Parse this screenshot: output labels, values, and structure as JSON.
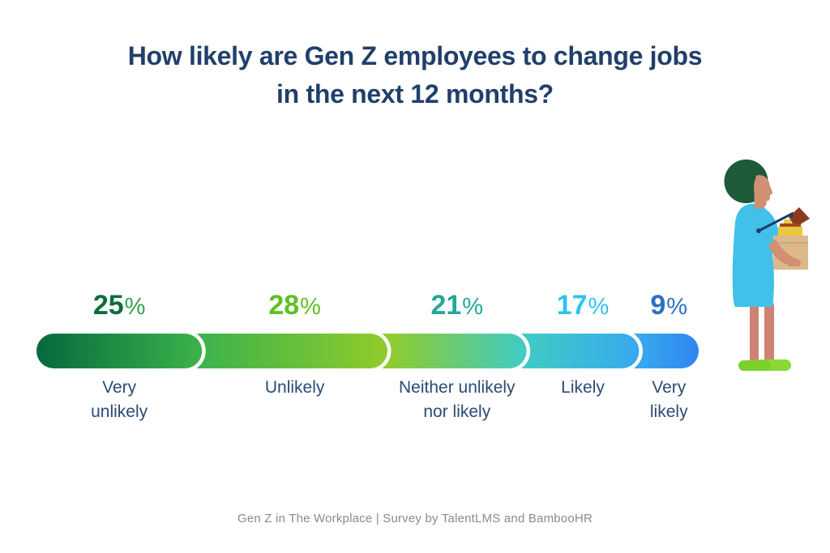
{
  "title": {
    "line1": "How likely are Gen Z employees to change jobs",
    "line2": "in the next 12 months?",
    "color": "#213f6b"
  },
  "chart_data": {
    "type": "bar",
    "variant": "horizontal-segmented-pill",
    "title": "How likely are Gen Z employees to change jobs in the next 12 months?",
    "unit": "%",
    "categories": [
      "Very unlikely",
      "Unlikely",
      "Neither unlikely nor likely",
      "Likely",
      "Very likely"
    ],
    "values": [
      25,
      28,
      21,
      17,
      9
    ],
    "segments": [
      {
        "value": 25,
        "label_lines": [
          "Very",
          "unlikely"
        ],
        "value_color": "#0c6e3b",
        "symbol_color": "#33a24f"
      },
      {
        "value": 28,
        "label_lines": [
          "Unlikely"
        ],
        "value_color": "#5fbf24",
        "symbol_color": "#5fbf24"
      },
      {
        "value": 21,
        "label_lines": [
          "Neither unlikely",
          "nor likely"
        ],
        "value_color": "#21a996",
        "symbol_color": "#21a996"
      },
      {
        "value": 17,
        "label_lines": [
          "Likely"
        ],
        "value_color": "#2fc3f0",
        "symbol_color": "#2fc3f0"
      },
      {
        "value": 9,
        "label_lines": [
          "Very",
          "likely"
        ],
        "value_color": "#2b70c4",
        "symbol_color": "#2b70c4"
      }
    ],
    "bar_gradient_stops": [
      "#06693d",
      "#3db34b",
      "#90cb2b",
      "#3fcbc5",
      "#38a8ef",
      "#2e86f0"
    ],
    "separator_color": "#ffffff",
    "category_label_color": "#2b4a74",
    "grid": false,
    "legend_position": "none"
  },
  "footer": {
    "text": "Gen Z in The Workplace | Survey by TalentLMS and BambooHR",
    "color": "#8a8a8a"
  },
  "illustration": {
    "name": "person-carrying-office-box",
    "description": "Side profile of a person with dark green afro hair in a cyan dress, carrying a cardboard box with a desk lamp and yellow folder, wearing green shoes",
    "palette": {
      "hair": "#1c5a3a",
      "skin": "#d18f74",
      "legs": "#cf8274",
      "dress": "#41c0e9",
      "box": "#dcb88b",
      "folder": "#e9c93c",
      "folder_strip": "#a04a22",
      "lamp_shade": "#8c3a1d",
      "lamp_arm": "#1d3c6b",
      "shoe_front": "#79d12a",
      "shoe_back": "#8ad835"
    }
  }
}
